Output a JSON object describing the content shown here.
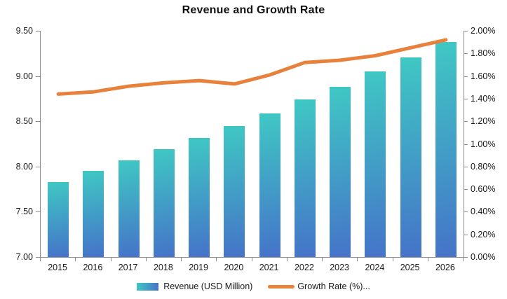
{
  "title": "Revenue and Growth Rate",
  "chart_data": {
    "type": "bar+line",
    "title": "Revenue and Growth Rate",
    "categories": [
      "2015",
      "2016",
      "2017",
      "2018",
      "2019",
      "2020",
      "2021",
      "2022",
      "2023",
      "2024",
      "2025",
      "2026"
    ],
    "series": [
      {
        "name": "Revenue (USD Million)",
        "type": "bar",
        "axis": "left",
        "values": [
          7.83,
          7.95,
          8.07,
          8.19,
          8.32,
          8.45,
          8.59,
          8.74,
          8.88,
          9.05,
          9.21,
          9.38
        ]
      },
      {
        "name": "Growth Rate (%)...",
        "type": "line",
        "axis": "right",
        "values": [
          1.44,
          1.46,
          1.51,
          1.54,
          1.56,
          1.53,
          1.61,
          1.72,
          1.74,
          1.78,
          1.85,
          1.92
        ]
      }
    ],
    "left_axis": {
      "min": 7.0,
      "max": 9.5,
      "step": 0.5,
      "tick_labels": [
        "9.50",
        "9.00",
        "8.50",
        "8.00",
        "7.50",
        "7.00"
      ]
    },
    "right_axis": {
      "min": 0.0,
      "max": 2.0,
      "step": 0.2,
      "tick_labels": [
        "2.00%",
        "1.80%",
        "1.60%",
        "1.40%",
        "1.20%",
        "1.00%",
        "0.80%",
        "0.60%",
        "0.40%",
        "0.20%",
        "0.00%"
      ]
    },
    "xlabel": "",
    "ylabel": "",
    "grid": false,
    "legend_position": "bottom"
  },
  "colors": {
    "bar_gradient_top": "#3FC8C3",
    "bar_gradient_bottom": "#4573C9",
    "line": "#E8813B",
    "axis": "#8C8C8C",
    "text": "#1a1a1a",
    "background": "#FFFFFF"
  }
}
